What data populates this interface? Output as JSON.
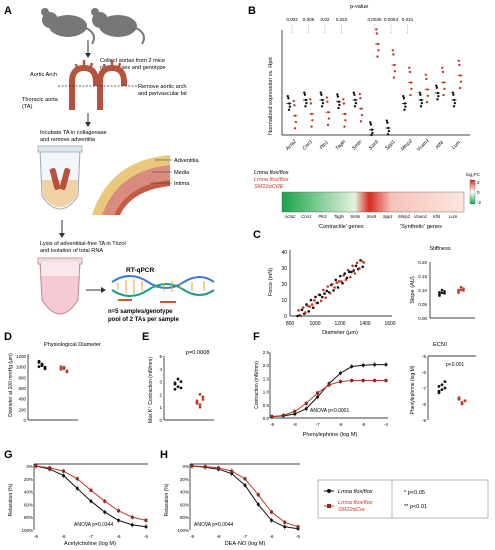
{
  "panel_a": {
    "letter": "A",
    "collect_l1": "Collect aortas from 2 mice",
    "collect_l2": "of same sex and genotype",
    "aortic_arch": "Aortic Arch",
    "remove_l1": "Remove aortic arch",
    "remove_l2": "and perivascular fat",
    "thoracic_l1": "Thoracic aorta",
    "thoracic_l2": "(TA)",
    "incubate_l1": "Incubate TA in collagenase",
    "incubate_l2": "and remove adventitia",
    "adventitia": "Adventitia",
    "media": "Media",
    "intima": "Intima",
    "lysis_l1": "Lysis of adventitial-free TA in Trizol",
    "lysis_l2": "and isolation of total RNA",
    "rtqpcr": "RT-qPCR",
    "n5_l1": "n=5 samples/genotype",
    "n5_l2": "pool of 2 TAs per sample"
  },
  "panel_b": {
    "letter": "B",
    "pvalue_label": "p-value",
    "pvalues": [
      "0.002",
      "0.005",
      "0.02",
      "0.022",
      "0.0035",
      "0.0063",
      "0.031"
    ],
    "ylabel": "Normalized expression vs. Hprt",
    "genes": [
      "Acta2",
      "Cnn1",
      "Pln1",
      "Tagln",
      "Smtn",
      "Sox9",
      "Spp1",
      "Mmp2",
      "Vcam1",
      "Klf4",
      "Lum"
    ],
    "contractile_label": "'Contractile' genes",
    "synthetic_label": "'Synthetic' genes",
    "legend_wt": "Lmna flox/flox",
    "legend_ko_1": "Lmna flox/flox",
    "legend_ko_2": "SM22αCRE",
    "log2fc": "log₂FC",
    "scale_ticks": [
      "2",
      "0",
      "-2"
    ]
  },
  "panel_c": {
    "letter": "C",
    "ylabel": "Force (mN)",
    "xlabel": "Diameter (µm)",
    "xticks": [
      "800",
      "1000",
      "1200",
      "1400",
      "1600"
    ],
    "yticks": [
      "0",
      "10",
      "20",
      "30",
      "40"
    ],
    "stiff_title": "Stiffness",
    "stiff_ylabel": "Slope (AU)",
    "stiff_yticks": [
      "0.00",
      "0.05",
      "0.10",
      "0.15",
      "0.20"
    ]
  },
  "panel_d": {
    "letter": "D",
    "title": "Physiological Diameter",
    "ylabel": "Diameter at 100 mmHg (µm)",
    "yticks": [
      "0",
      "200",
      "400",
      "600",
      "800",
      "1000",
      "1200"
    ]
  },
  "panel_e": {
    "letter": "E",
    "pvalue": "p=0.0008",
    "ylabel": "Max K⁺ Contraction (mN/mm)",
    "yticks": [
      "0",
      "1",
      "2",
      "3",
      "4",
      "5"
    ]
  },
  "panel_f": {
    "letter": "F",
    "ylabel": "Contraction (mN/mm)",
    "xlabel": "Phenylephrine (log M)",
    "anova": "ANOVA p<0.0001",
    "yticks": [
      "0.0",
      "0.5",
      "1.0",
      "1.5",
      "2.0",
      "2.5"
    ],
    "xticks": [
      "-9",
      "-8",
      "-7",
      "-6",
      "-5",
      "-4"
    ],
    "ec50_title": "EC50",
    "ec50_ylabel": "Phenylephrine (log M)",
    "ec50_pvalue": "p<0.001",
    "ec50_yticks": [
      "-5",
      "-6",
      "-7",
      "-8",
      "-9"
    ]
  },
  "panel_g": {
    "letter": "G",
    "ylabel": "Relaxation (%)",
    "xlabel": "Acetylcholine (log M)",
    "anova": "ANOVA p=0.0344",
    "yticks": [
      "0%",
      "20%",
      "40%",
      "60%",
      "80%",
      "100%"
    ],
    "xticks": [
      "-9",
      "-8",
      "-7",
      "-6",
      "-5"
    ]
  },
  "panel_h": {
    "letter": "H",
    "ylabel": "Relaxation (%)",
    "xlabel": "DEA-NO (log M)",
    "anova": "ANOVA p=0.0044",
    "yticks": [
      "0%",
      "20%",
      "40%",
      "60%",
      "80%",
      "100%"
    ],
    "xticks": [
      "-9",
      "-8",
      "-7",
      "-6",
      "-5"
    ]
  },
  "legend": {
    "wt": "Lmna flox/flox",
    "ko_1": "Lmna flox/flox",
    "ko_2": "SM22αCre",
    "sig1": "* p<0.05",
    "sig2": "** p<0.01"
  },
  "colors": {
    "wt": "#111111",
    "ko": "#c0392b",
    "ko_fill": "#f4b6b0",
    "heat_green": "#19a34a",
    "heat_red": "#d72a1d"
  },
  "chart_data": [
    {
      "panel": "B",
      "type": "scatter",
      "categories": [
        "Acta2",
        "Cnn1",
        "Pln1",
        "Tagln",
        "Smtn",
        "Sox9",
        "Spp1",
        "Mmp2",
        "Vcam1",
        "Klf4",
        "Lum"
      ],
      "series": [
        {
          "values": [
            0.9,
            1.0,
            1.0,
            0.95,
            1.0,
            0.15,
            0.2,
            0.9,
            1.0,
            1.2,
            1.0
          ]
        },
        {
          "values": [
            0.55,
            0.6,
            0.65,
            0.6,
            0.75,
            2.6,
            2.0,
            1.5,
            1.3,
            1.5,
            1.7
          ]
        }
      ],
      "ylim": [
        0,
        3
      ]
    },
    {
      "panel": "F",
      "type": "line",
      "x": [
        -9,
        -8.5,
        -8,
        -7.5,
        -7,
        -6.5,
        -6,
        -5.5,
        -5,
        -4.5,
        -4
      ],
      "series": [
        {
          "values": [
            0.05,
            0.08,
            0.15,
            0.35,
            0.8,
            1.3,
            1.7,
            1.95,
            2.0,
            2.02,
            2.02
          ]
        },
        {
          "values": [
            0.05,
            0.1,
            0.25,
            0.55,
            0.95,
            1.25,
            1.38,
            1.42,
            1.42,
            1.42,
            1.42
          ]
        }
      ],
      "ylim": [
        0,
        2.5
      ]
    },
    {
      "panel": "G",
      "type": "line",
      "x": [
        -9,
        -8.5,
        -8,
        -7.5,
        -7,
        -6.5,
        -6,
        -5.5,
        -5
      ],
      "series": [
        {
          "values": [
            0,
            5,
            15,
            35,
            55,
            72,
            85,
            92,
            95
          ]
        },
        {
          "values": [
            0,
            3,
            8,
            20,
            38,
            55,
            70,
            80,
            85
          ]
        }
      ],
      "ylim": [
        0,
        100
      ]
    },
    {
      "panel": "H",
      "type": "line",
      "x": [
        -9,
        -8.5,
        -8,
        -7.5,
        -7,
        -6.5,
        -6,
        -5.5,
        -5
      ],
      "series": [
        {
          "values": [
            0,
            2,
            5,
            12,
            30,
            60,
            85,
            95,
            98
          ]
        },
        {
          "values": [
            0,
            1,
            3,
            8,
            20,
            45,
            72,
            88,
            95
          ]
        }
      ],
      "ylim": [
        0,
        100
      ]
    }
  ]
}
